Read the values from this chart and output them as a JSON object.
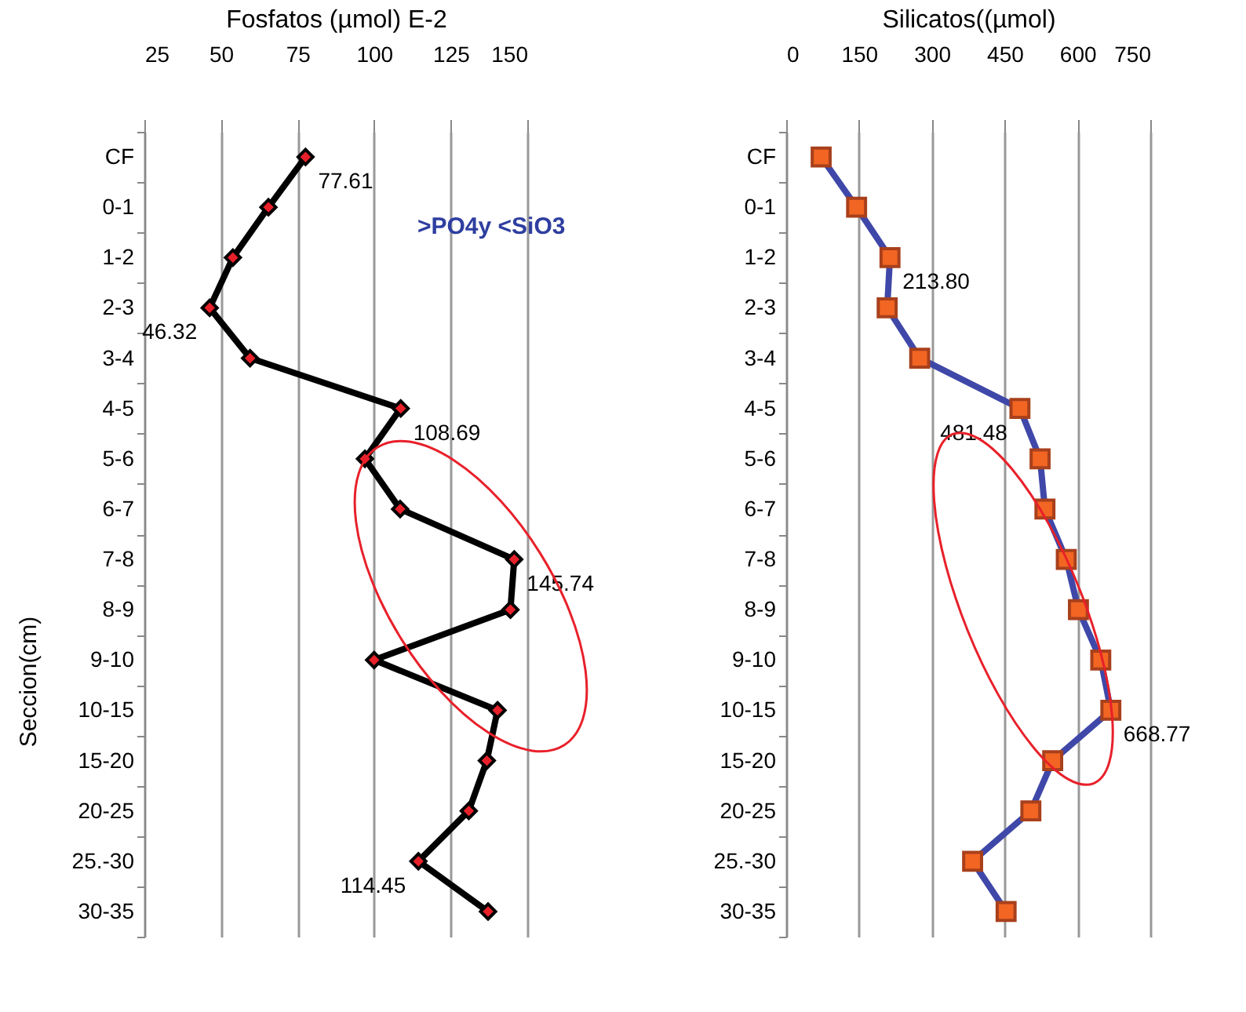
{
  "chart_data": [
    {
      "type": "line",
      "xlabel": "Fosfatos (µmol)  E-2",
      "ylabel": "Seccion(cm)",
      "orientation": "horizontal",
      "categories": [
        "CF",
        "0-1",
        "1-2",
        "2-3",
        "3-4",
        "4-5",
        "5-6",
        "6-7",
        "7-8",
        "8-9",
        "9-10",
        "10-15",
        "15-20",
        "20-25",
        "25.-30",
        "30-35"
      ],
      "series": [
        {
          "color": "#e8202a",
          "values": [
            77.61,
            65.5,
            53.9,
            46.32,
            59.5,
            108.69,
            97,
            108.5,
            145.74,
            144.5,
            100,
            140.3,
            136.8,
            130.9,
            114.45,
            137.2
          ],
          "value_labels": [
            "77.61",
            null,
            null,
            "46.32",
            null,
            "108.69",
            null,
            null,
            "145.74",
            null,
            null,
            null,
            null,
            null,
            "114.45",
            null
          ]
        }
      ],
      "xlim": [
        25,
        150
      ],
      "xticks": [
        25,
        50,
        75,
        100,
        125,
        150
      ],
      "grid": "x",
      "marker": "diamond",
      "annotations": [
        ">PO4y <SiO3"
      ]
    },
    {
      "type": "line",
      "xlabel": "Silicatos((µmol)",
      "orientation": "horizontal",
      "categories": [
        "CF",
        "0-1",
        "1-2",
        "2-3",
        "3-4",
        "4-5",
        "5-6",
        "6-7",
        "7-8",
        "8-9",
        "9-10",
        "10-15",
        "15-20",
        "20-25",
        "25.-30",
        "30-35"
      ],
      "series": [
        {
          "color": "#3f48a8",
          "values": [
            72,
            145,
            213.8,
            208,
            275,
            481.48,
            523,
            533,
            577,
            602,
            648,
            668.77,
            549,
            504,
            384,
            453
          ],
          "value_labels": [
            null,
            null,
            "213.80",
            null,
            null,
            "481.48",
            null,
            null,
            null,
            null,
            null,
            "668.77",
            null,
            null,
            null,
            null
          ]
        }
      ],
      "xlim": [
        0,
        750
      ],
      "xticks": [
        0,
        150,
        300,
        450,
        600,
        750
      ],
      "grid": "x",
      "marker": "square"
    }
  ]
}
